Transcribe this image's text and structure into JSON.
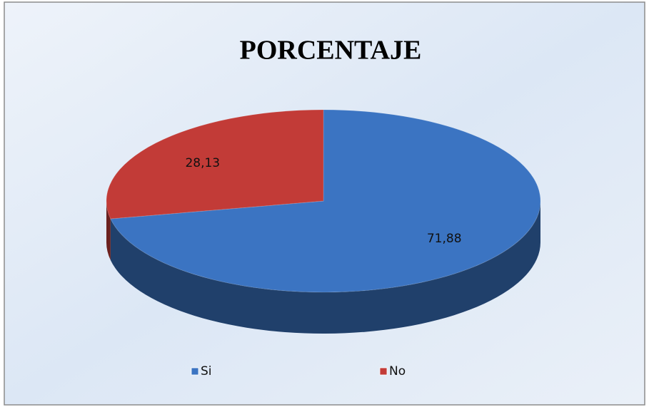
{
  "chart_data": {
    "type": "pie",
    "title": "PORCENTAJE",
    "categories": [
      "Si",
      "No"
    ],
    "values": [
      71.88,
      28.13
    ],
    "value_labels": [
      "71,88",
      "28,13"
    ],
    "colors": [
      "#3b74c2",
      "#c23b37"
    ],
    "legend": "bottom"
  }
}
